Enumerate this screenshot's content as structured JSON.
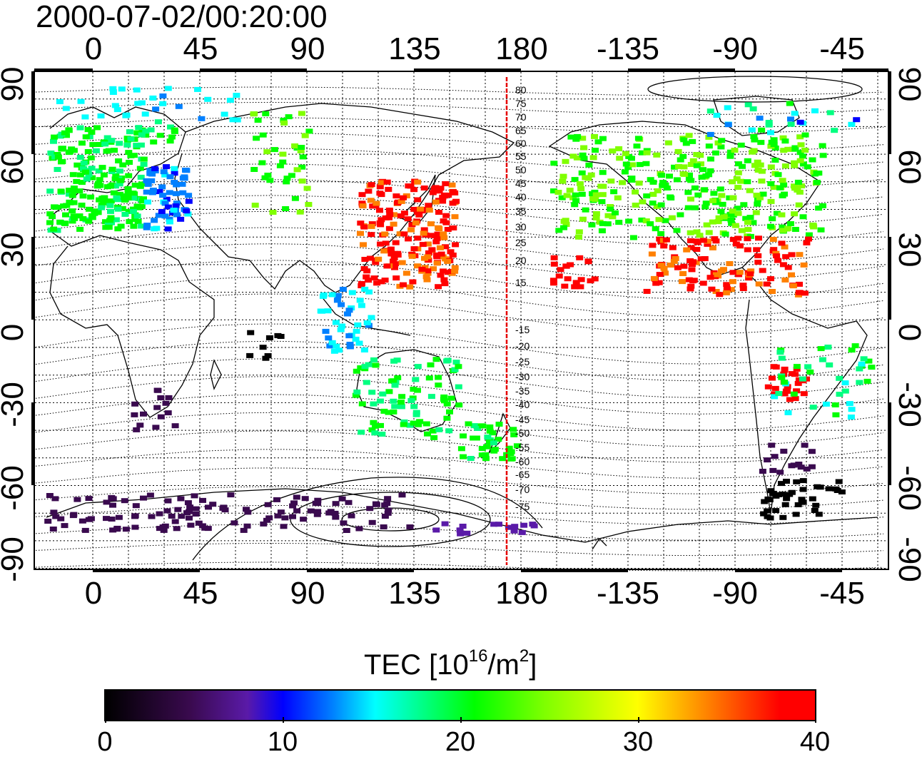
{
  "timestamp": "2000-07-02/00:20:00",
  "lon_top_labels": [
    "0",
    "45",
    "90",
    "135",
    "180",
    "-135",
    "-90",
    "-45"
  ],
  "lon_bottom_labels": [
    "0",
    "45",
    "90",
    "135",
    "180",
    "-135",
    "-90",
    "-45"
  ],
  "lat_left_labels": [
    "90",
    "60",
    "30",
    "0",
    "-30",
    "-60",
    "-90"
  ],
  "lat_right_labels": [
    "90",
    "60",
    "30",
    "0",
    "-30",
    "-60",
    "-90"
  ],
  "contour_labels": [
    "80",
    "75",
    "70",
    "65",
    "60",
    "55",
    "50",
    "45",
    "40",
    "35",
    "30",
    "25",
    "20",
    "15",
    "-15",
    "-20",
    "-25",
    "-30",
    "-35",
    "-40",
    "-45",
    "-50",
    "-55",
    "-60",
    "-65",
    "-70",
    "-75"
  ],
  "legend": {
    "title_prefix": "TEC  [10",
    "title_exp": "16",
    "title_mid": "/m",
    "title_exp2": "2",
    "title_suffix": "]",
    "ticks": [
      "0",
      "10",
      "20",
      "30",
      "40"
    ],
    "min": 0,
    "max": 40
  },
  "colors": {
    "marker_line": "#e60000",
    "high": "#ff0000",
    "mid": "#00ff00",
    "low": "#3a0a4f"
  }
}
